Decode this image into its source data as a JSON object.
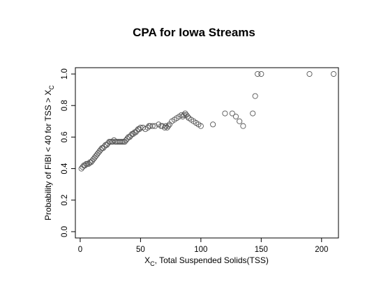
{
  "chart_data": {
    "type": "scatter",
    "title": "CPA for Iowa Streams",
    "xlabel": {
      "main": "X",
      "sub": "C",
      "rest": ", Total Suspended Solids(TSS)"
    },
    "ylabel": {
      "main": "Probability of FIBI < 40 for TSS > X",
      "sub": "C"
    },
    "xlim": [
      -4,
      214
    ],
    "ylim": [
      -0.04,
      1.04
    ],
    "xticks": [
      0,
      50,
      100,
      150,
      200
    ],
    "yticks": [
      0.0,
      0.2,
      0.4,
      0.6,
      0.8,
      1.0
    ],
    "xtick_labels": [
      "0",
      "50",
      "100",
      "150",
      "200"
    ],
    "ytick_labels": [
      "0.0",
      "0.2",
      "0.4",
      "0.6",
      "0.8",
      "1.0"
    ],
    "marker": "open-circle",
    "color": "#555555",
    "points": [
      [
        1,
        0.4
      ],
      [
        2,
        0.41
      ],
      [
        3,
        0.42
      ],
      [
        4,
        0.42
      ],
      [
        5,
        0.43
      ],
      [
        6,
        0.43
      ],
      [
        7,
        0.43
      ],
      [
        8,
        0.44
      ],
      [
        9,
        0.44
      ],
      [
        10,
        0.45
      ],
      [
        11,
        0.46
      ],
      [
        12,
        0.47
      ],
      [
        13,
        0.48
      ],
      [
        14,
        0.49
      ],
      [
        15,
        0.5
      ],
      [
        16,
        0.51
      ],
      [
        17,
        0.52
      ],
      [
        18,
        0.53
      ],
      [
        19,
        0.53
      ],
      [
        20,
        0.54
      ],
      [
        21,
        0.55
      ],
      [
        22,
        0.55
      ],
      [
        23,
        0.56
      ],
      [
        24,
        0.57
      ],
      [
        25,
        0.57
      ],
      [
        26,
        0.57
      ],
      [
        27,
        0.57
      ],
      [
        28,
        0.58
      ],
      [
        29,
        0.57
      ],
      [
        30,
        0.57
      ],
      [
        31,
        0.57
      ],
      [
        32,
        0.57
      ],
      [
        33,
        0.57
      ],
      [
        34,
        0.57
      ],
      [
        35,
        0.57
      ],
      [
        36,
        0.57
      ],
      [
        37,
        0.57
      ],
      [
        38,
        0.58
      ],
      [
        39,
        0.59
      ],
      [
        40,
        0.6
      ],
      [
        41,
        0.6
      ],
      [
        42,
        0.61
      ],
      [
        43,
        0.62
      ],
      [
        44,
        0.62
      ],
      [
        45,
        0.63
      ],
      [
        46,
        0.63
      ],
      [
        47,
        0.64
      ],
      [
        48,
        0.65
      ],
      [
        49,
        0.65
      ],
      [
        50,
        0.66
      ],
      [
        52,
        0.66
      ],
      [
        54,
        0.65
      ],
      [
        56,
        0.66
      ],
      [
        57,
        0.67
      ],
      [
        58,
        0.67
      ],
      [
        60,
        0.67
      ],
      [
        62,
        0.67
      ],
      [
        65,
        0.68
      ],
      [
        67,
        0.67
      ],
      [
        68,
        0.67
      ],
      [
        70,
        0.66
      ],
      [
        71,
        0.67
      ],
      [
        72,
        0.66
      ],
      [
        73,
        0.67
      ],
      [
        74,
        0.68
      ],
      [
        76,
        0.7
      ],
      [
        78,
        0.71
      ],
      [
        80,
        0.72
      ],
      [
        82,
        0.73
      ],
      [
        84,
        0.74
      ],
      [
        85,
        0.73
      ],
      [
        86,
        0.74
      ],
      [
        87,
        0.75
      ],
      [
        88,
        0.74
      ],
      [
        89,
        0.73
      ],
      [
        90,
        0.72
      ],
      [
        92,
        0.71
      ],
      [
        94,
        0.7
      ],
      [
        96,
        0.69
      ],
      [
        98,
        0.68
      ],
      [
        100,
        0.67
      ],
      [
        110,
        0.68
      ],
      [
        120,
        0.75
      ],
      [
        126,
        0.75
      ],
      [
        129,
        0.73
      ],
      [
        132,
        0.7
      ],
      [
        135,
        0.67
      ],
      [
        143,
        0.75
      ],
      [
        145,
        0.86
      ],
      [
        147,
        1.0
      ],
      [
        150,
        1.0
      ],
      [
        190,
        1.0
      ],
      [
        210,
        1.0
      ]
    ]
  }
}
